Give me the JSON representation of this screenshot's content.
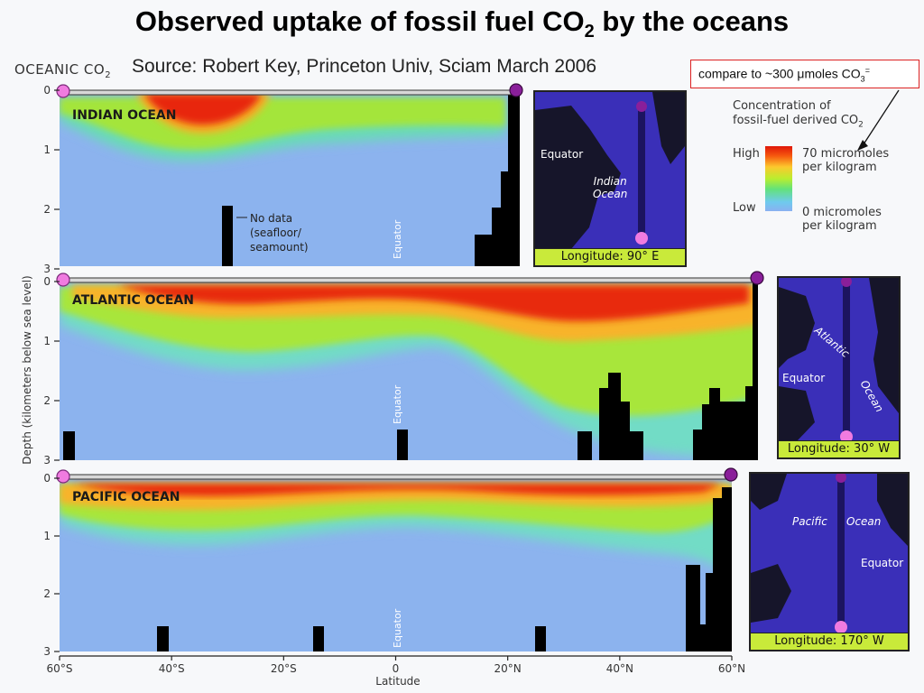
{
  "title": {
    "text": "Observed uptake of fossil fuel CO",
    "sub": "2",
    "suffix": " by the oceans"
  },
  "figure_tag": {
    "text": "OCEANIC CO",
    "sub": "2"
  },
  "source": "Source: Robert Key, Princeton Univ, Sciam March 2006",
  "compare_note": {
    "prefix": "compare to ~300 ",
    "mu": "μ",
    "middle": "moles CO",
    "sub": "3",
    "sup": "="
  },
  "legend": {
    "title_line1": "Concentration of",
    "title_line2": "fossil-fuel derived CO",
    "title_sub": "2",
    "high_label": "High",
    "low_label": "Low",
    "high_value_1": "70 micromoles",
    "high_value_2": "per kilogram",
    "low_value_1": "0 micromoles",
    "low_value_2": "per kilogram"
  },
  "axes": {
    "ylabel": "Depth (kilometers below sea level)",
    "xlabel": "Latitude",
    "equator_label": "Equator"
  },
  "no_data_note": [
    "No data",
    "(seafloor/",
    "seamount)"
  ],
  "maps": [
    {
      "label_1": "Indian",
      "label_2": "Ocean",
      "equator": "Equator",
      "footer": "Longitude: 90° E"
    },
    {
      "label_1": "Atlantic",
      "label_2": "Ocean",
      "equator": "Equator",
      "footer": "Longitude: 30° W"
    },
    {
      "label_1": "Pacific",
      "label_2": "Ocean",
      "equator": "Equator",
      "footer": "Longitude: 170° W"
    }
  ],
  "colors": {
    "high": "#e01608",
    "mid": "#b9ee2f",
    "low": "#8ab0f0",
    "map_ocean": "#3a2fb8",
    "map_footer": "#c9ea3a",
    "endpoint_south": "#f07be0",
    "endpoint_north": "#8a1f9a"
  },
  "chart_data": [
    {
      "type": "heatmap",
      "name": "INDIAN OCEAN",
      "xlabel": "Latitude",
      "ylabel": "Depth (kilometers below sea level)",
      "xlim": [
        -60,
        60
      ],
      "ylim": [
        3,
        0
      ],
      "x_ticks": [
        "60°S",
        "40°S",
        "20°S",
        "0",
        "20°N",
        "40°N",
        "60°N"
      ],
      "y_ticks": [
        "0",
        "1",
        "2",
        "3"
      ],
      "colorbar": {
        "min": 0,
        "max": 70,
        "unit": "micromoles per kilogram"
      },
      "section_extent": [
        -60,
        22
      ],
      "penetration_depth_km": {
        "lat": [
          -60,
          -50,
          -40,
          -35,
          -30,
          -20,
          -10,
          0,
          10,
          20
        ],
        "depth": [
          0.3,
          0.6,
          0.9,
          1.1,
          1.0,
          0.9,
          0.85,
          0.85,
          0.8,
          0.8
        ]
      },
      "high_core_km": {
        "lat": [
          -45,
          -40,
          -35,
          -30,
          -25,
          -20
        ],
        "depth": [
          0.3,
          0.5,
          0.7,
          0.6,
          0.4,
          0.3
        ]
      }
    },
    {
      "type": "heatmap",
      "name": "ATLANTIC OCEAN",
      "xlabel": "Latitude",
      "ylabel": "Depth (kilometers below sea level)",
      "xlim": [
        -60,
        60
      ],
      "ylim": [
        3,
        0
      ],
      "x_ticks": [
        "60°S",
        "40°S",
        "20°S",
        "0",
        "20°N",
        "40°N",
        "60°N"
      ],
      "y_ticks": [
        "0",
        "1",
        "2",
        "3"
      ],
      "colorbar": {
        "min": 0,
        "max": 70,
        "unit": "micromoles per kilogram"
      },
      "section_extent": [
        -60,
        60
      ],
      "penetration_depth_km": {
        "lat": [
          -60,
          -50,
          -40,
          -30,
          -20,
          -10,
          0,
          10,
          20,
          30,
          40,
          50,
          60
        ],
        "depth": [
          0.5,
          1.0,
          1.2,
          1.2,
          1.1,
          0.9,
          0.8,
          0.7,
          1.2,
          2.0,
          2.5,
          2.8,
          2.8
        ]
      },
      "high_core_km": {
        "lat": [
          -40,
          -30,
          -20,
          -10,
          0,
          10,
          20,
          30,
          40,
          50
        ],
        "depth": [
          0.15,
          0.3,
          0.4,
          0.3,
          0.2,
          0.2,
          0.3,
          0.4,
          0.6,
          0.5
        ]
      }
    },
    {
      "type": "heatmap",
      "name": "PACIFIC OCEAN",
      "xlabel": "Latitude",
      "ylabel": "Depth (kilometers below sea level)",
      "xlim": [
        -60,
        60
      ],
      "ylim": [
        3,
        0
      ],
      "x_ticks": [
        "60°S",
        "40°S",
        "20°S",
        "0",
        "20°N",
        "40°N",
        "60°N"
      ],
      "y_ticks": [
        "0",
        "1",
        "2",
        "3"
      ],
      "colorbar": {
        "min": 0,
        "max": 70,
        "unit": "micromoles per kilogram"
      },
      "section_extent": [
        -60,
        58
      ],
      "penetration_depth_km": {
        "lat": [
          -60,
          -50,
          -40,
          -30,
          -20,
          -10,
          0,
          10,
          20,
          30,
          40,
          50,
          55
        ],
        "depth": [
          0.3,
          0.6,
          0.8,
          0.8,
          0.7,
          0.5,
          0.4,
          0.4,
          0.5,
          0.7,
          0.8,
          1.0,
          1.5
        ]
      },
      "high_core_km": {
        "lat": [
          -50,
          -40,
          -30,
          -20,
          -10,
          0,
          10,
          20,
          30,
          40,
          50
        ],
        "depth": [
          0.2,
          0.25,
          0.25,
          0.2,
          0.15,
          0.1,
          0.15,
          0.2,
          0.2,
          0.25,
          0.2
        ]
      }
    }
  ]
}
